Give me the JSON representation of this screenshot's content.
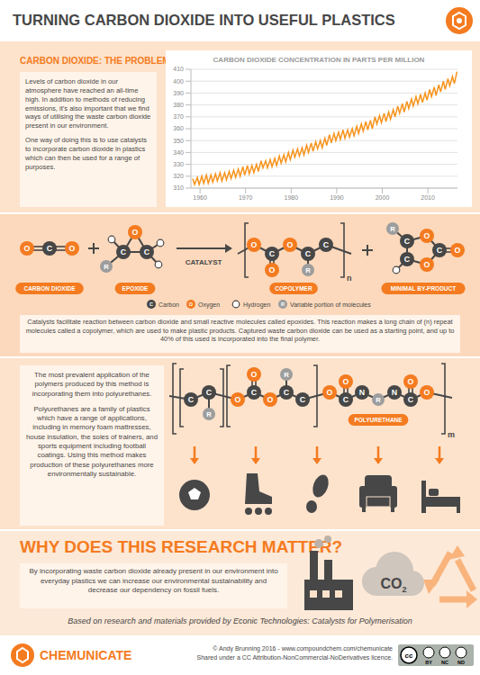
{
  "header": {
    "title": "TURNING CARBON DIOXIDE INTO USEFUL PLASTICS"
  },
  "problem": {
    "heading": "CARBON DIOXIDE: THE PROBLEM",
    "paragraphs": [
      "Levels of carbon dioxide in our atmosphere have reached an all-time high. In addition to methods of reducing emissions, it's also important that we find ways of utilising the waste carbon dioxide present in our environment.",
      "One way of doing this is to use catalysts to incorporate carbon dioxide in plastics which can then be used for a range of purposes."
    ]
  },
  "chart_data": {
    "type": "line",
    "title": "CARBON DIOXIDE CONCENTRATION IN PARTS PER MILLION",
    "x": [
      1958.4,
      1958.8,
      1959.4,
      1959.8,
      1960.4,
      1960.8,
      1961.4,
      1961.8,
      1962.4,
      1962.8,
      1963.4,
      1963.8,
      1964.4,
      1964.8,
      1965.4,
      1965.8,
      1966.4,
      1966.8,
      1967.4,
      1967.8,
      1968.4,
      1968.8,
      1969.4,
      1969.8,
      1970.4,
      1970.8,
      1971.4,
      1971.8,
      1972.4,
      1972.8,
      1973.4,
      1973.8,
      1974.4,
      1974.8,
      1975.4,
      1975.8,
      1976.4,
      1976.8,
      1977.4,
      1977.8,
      1978.4,
      1978.8,
      1979.4,
      1979.8,
      1980.4,
      1980.8,
      1981.4,
      1981.8,
      1982.4,
      1982.8,
      1983.4,
      1983.8,
      1984.4,
      1984.8,
      1985.4,
      1985.8,
      1986.4,
      1986.8,
      1987.4,
      1987.8,
      1988.4,
      1988.8,
      1989.4,
      1989.8,
      1990.4,
      1990.8,
      1991.4,
      1991.8,
      1992.4,
      1992.8,
      1993.4,
      1993.8,
      1994.4,
      1994.8,
      1995.4,
      1995.8,
      1996.4,
      1996.8,
      1997.4,
      1997.8,
      1998.4,
      1998.8,
      1999.4,
      1999.8,
      2000.4,
      2000.8,
      2001.4,
      2001.8,
      2002.4,
      2002.8,
      2003.4,
      2003.8,
      2004.4,
      2004.8,
      2005.4,
      2005.8,
      2006.4,
      2006.8,
      2007.4,
      2007.8,
      2008.4,
      2008.8,
      2009.4,
      2009.8,
      2010.4,
      2010.8,
      2011.4,
      2011.8,
      2012.4,
      2012.8,
      2013.4,
      2013.8,
      2014.4,
      2014.8,
      2015.4,
      2015.8,
      2016.4
    ],
    "values": [
      318,
      313,
      319,
      313,
      320,
      314,
      321,
      314,
      321,
      315,
      322,
      316,
      323,
      316,
      323,
      317,
      324,
      318,
      325,
      319,
      326,
      320,
      328,
      321,
      329,
      322,
      329,
      323,
      330,
      324,
      333,
      327,
      333,
      327,
      334,
      328,
      335,
      329,
      337,
      331,
      338,
      332,
      340,
      334,
      342,
      336,
      343,
      337,
      344,
      338,
      346,
      340,
      348,
      341,
      349,
      343,
      350,
      344,
      352,
      346,
      355,
      348,
      356,
      350,
      357,
      351,
      359,
      352,
      359,
      353,
      360,
      354,
      362,
      356,
      364,
      358,
      366,
      359,
      367,
      360,
      370,
      364,
      371,
      365,
      373,
      366,
      374,
      368,
      376,
      370,
      379,
      373,
      381,
      374,
      383,
      377,
      385,
      379,
      387,
      381,
      389,
      382,
      390,
      384,
      393,
      387,
      395,
      388,
      397,
      391,
      400,
      393,
      402,
      396,
      404,
      398,
      408
    ],
    "color": "#f7941d",
    "xlim": [
      1958,
      2016.5
    ],
    "xticks": [
      1960,
      1970,
      1980,
      1990,
      2000,
      2010
    ],
    "ylim": [
      310,
      410
    ],
    "yticks": [
      310,
      320,
      330,
      340,
      350,
      360,
      370,
      380,
      390,
      400,
      410
    ],
    "grid": true,
    "marker": "none",
    "line_style": "solid"
  },
  "reaction": {
    "labels": [
      "CARBON DIOXIDE",
      "EPOXIDE",
      "COPOLYMER",
      "MINIMAL BY-PRODUCT"
    ],
    "catalyst": "CATALYST",
    "subscript": "n",
    "legend": [
      {
        "symbol": "C",
        "name": "Carbon"
      },
      {
        "symbol": "O",
        "name": "Oxygen"
      },
      {
        "name": "Hydrogen"
      },
      {
        "symbol": "R",
        "name": "Variable portion of molecules"
      }
    ],
    "text": "Catalysts facilitate reaction between carbon dioxide and small reactive molecules called epoxides. This reaction makes a long chain of (n) repeat molecules called a copolymer, which are used to make plastic products. Captured waste carbon dioxide can be used as a starting point, and up to 40% of this used is incorporated into the final polymer."
  },
  "polyurethane": {
    "paragraphs": [
      "The most prevalent application of the polymers produced by this method is incorporating them into polyurethanes.",
      "Polyurethanes are a family of plastics which have a range of applications, including in memory foam mattresses, house insulation, the soles of trainers, and sports equipment including football coatings. Using this method makes production of these polyurethanes more environmentally sustainable."
    ],
    "label": "POLYURETHANE",
    "subscript": "m",
    "nitrogen_symbol": "N"
  },
  "why": {
    "heading": "WHY DOES THIS RESEARCH MATTER?",
    "text": "By incorporating waste carbon dioxide already present in our environment into everyday plastics we can increase our environmental sustainability and decrease our dependency on fossil fuels.",
    "cloud": {
      "main": "CO",
      "sub": "2"
    }
  },
  "footer": {
    "credit": "Based on research and materials provided by Econic Technologies: Catalysts for Polymerisation",
    "brand": "CHEMUNICATE",
    "copyright": "© Andy Brunning 2016 - www.compoundchem.com/chemunicate",
    "license": "Shared under a CC Attribution-NonCommercial-NoDerivatives licence.",
    "badge": {
      "main": "cc",
      "items": [
        "BY",
        "NC",
        "ND"
      ]
    }
  }
}
